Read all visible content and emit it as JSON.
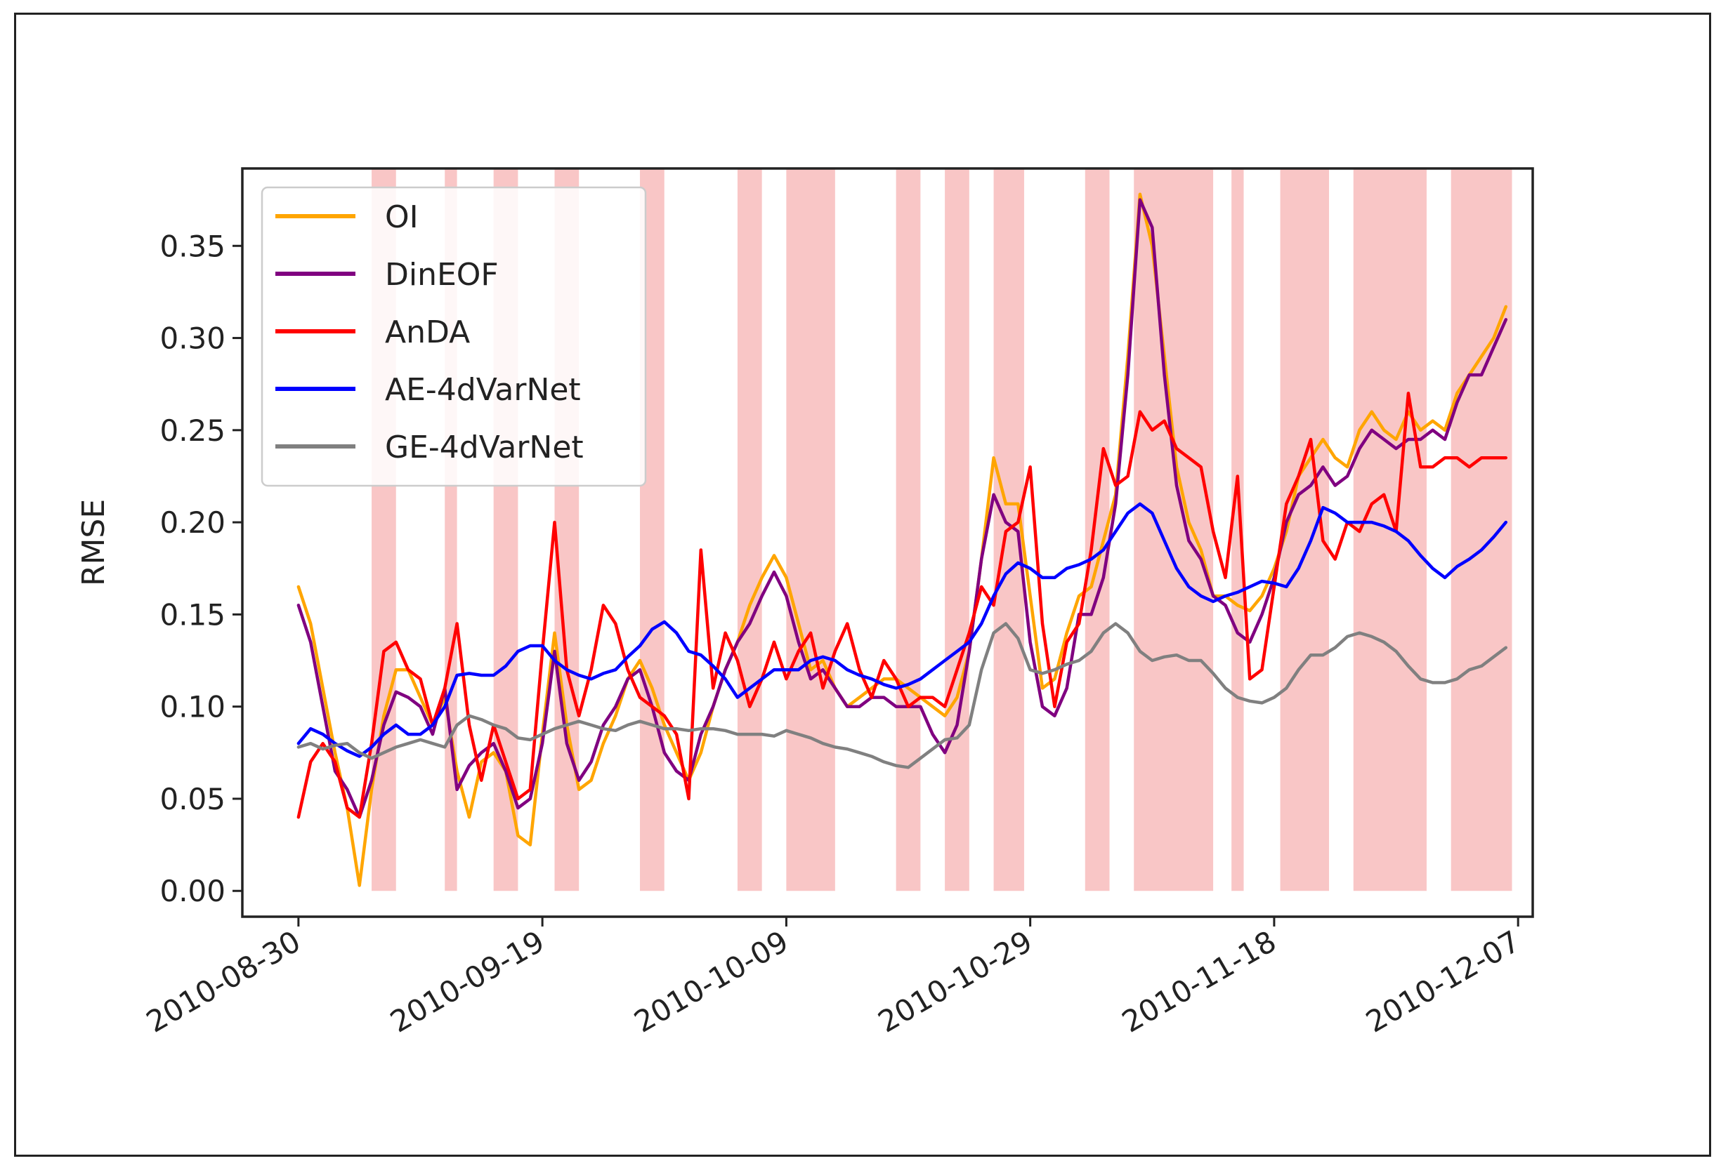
{
  "chart_data": {
    "type": "line",
    "title": "",
    "xlabel": "",
    "ylabel": "RMSE",
    "ylim": [
      -0.014,
      0.392
    ],
    "xlim": [
      -4.6,
      101.2
    ],
    "grid": false,
    "legend": "top-left",
    "x_tick_labels": [
      "2010-08-30",
      "2010-09-19",
      "2010-10-09",
      "2010-10-29",
      "2010-11-18",
      "2010-12-07"
    ],
    "x_tick_days": [
      0,
      20,
      40,
      60,
      80,
      100
    ],
    "y_ticks": [
      0.0,
      0.05,
      0.1,
      0.15,
      0.2,
      0.25,
      0.3,
      0.35
    ],
    "y_tick_labels": [
      "0.00",
      "0.05",
      "0.10",
      "0.15",
      "0.20",
      "0.25",
      "0.30",
      "0.35"
    ],
    "shaded_day_ranges": [
      [
        6,
        8
      ],
      [
        12,
        13
      ],
      [
        16,
        18
      ],
      [
        21,
        23
      ],
      [
        28,
        30
      ],
      [
        36,
        38
      ],
      [
        40,
        44
      ],
      [
        49,
        51
      ],
      [
        53,
        55
      ],
      [
        57,
        59.5
      ],
      [
        64.5,
        66.5
      ],
      [
        68.5,
        75
      ],
      [
        76.5,
        77.5
      ],
      [
        80.5,
        84.5
      ],
      [
        86.5,
        92.5
      ],
      [
        94.5,
        99.5
      ]
    ],
    "shade_color": "#f9c6c6",
    "x": [
      0,
      1,
      2,
      3,
      4,
      5,
      6,
      7,
      8,
      9,
      10,
      11,
      12,
      13,
      14,
      15,
      16,
      17,
      18,
      19,
      20,
      21,
      22,
      23,
      24,
      25,
      26,
      27,
      28,
      29,
      30,
      31,
      32,
      33,
      34,
      35,
      36,
      37,
      38,
      39,
      40,
      41,
      42,
      43,
      44,
      45,
      46,
      47,
      48,
      49,
      50,
      51,
      52,
      53,
      54,
      55,
      56,
      57,
      58,
      59,
      60,
      61,
      62,
      63,
      64,
      65,
      66,
      67,
      68,
      69,
      70,
      71,
      72,
      73,
      74,
      75,
      76,
      77,
      78,
      79,
      80,
      81,
      82,
      83,
      84,
      85,
      86,
      87,
      88,
      89,
      90,
      91,
      92,
      93,
      94,
      95,
      96,
      97,
      98,
      99
    ],
    "series": [
      {
        "name": "OI",
        "color": "#ffa500",
        "values": [
          0.165,
          0.145,
          0.11,
          0.075,
          0.045,
          0.003,
          0.055,
          0.095,
          0.12,
          0.12,
          0.105,
          0.09,
          0.105,
          0.065,
          0.04,
          0.07,
          0.075,
          0.065,
          0.03,
          0.025,
          0.085,
          0.14,
          0.09,
          0.055,
          0.06,
          0.08,
          0.095,
          0.115,
          0.125,
          0.11,
          0.09,
          0.075,
          0.06,
          0.075,
          0.1,
          0.12,
          0.135,
          0.155,
          0.17,
          0.182,
          0.17,
          0.145,
          0.12,
          0.125,
          0.11,
          0.1,
          0.105,
          0.11,
          0.115,
          0.115,
          0.11,
          0.105,
          0.1,
          0.095,
          0.105,
          0.13,
          0.18,
          0.235,
          0.21,
          0.21,
          0.16,
          0.11,
          0.115,
          0.14,
          0.16,
          0.165,
          0.19,
          0.215,
          0.29,
          0.378,
          0.35,
          0.29,
          0.23,
          0.2,
          0.185,
          0.16,
          0.16,
          0.155,
          0.152,
          0.16,
          0.175,
          0.195,
          0.225,
          0.235,
          0.245,
          0.235,
          0.23,
          0.25,
          0.26,
          0.25,
          0.245,
          0.26,
          0.25,
          0.255,
          0.25,
          0.27,
          0.28,
          0.29,
          0.3,
          0.317
        ]
      },
      {
        "name": "DinEOF",
        "color": "#800080",
        "values": [
          0.155,
          0.135,
          0.1,
          0.065,
          0.055,
          0.04,
          0.06,
          0.09,
          0.108,
          0.105,
          0.1,
          0.085,
          0.11,
          0.055,
          0.068,
          0.075,
          0.08,
          0.065,
          0.045,
          0.05,
          0.08,
          0.13,
          0.08,
          0.06,
          0.07,
          0.09,
          0.1,
          0.115,
          0.12,
          0.1,
          0.075,
          0.065,
          0.06,
          0.085,
          0.1,
          0.12,
          0.135,
          0.145,
          0.16,
          0.173,
          0.16,
          0.135,
          0.115,
          0.12,
          0.11,
          0.1,
          0.1,
          0.105,
          0.105,
          0.1,
          0.1,
          0.1,
          0.085,
          0.075,
          0.09,
          0.13,
          0.18,
          0.215,
          0.2,
          0.195,
          0.135,
          0.1,
          0.095,
          0.11,
          0.15,
          0.15,
          0.17,
          0.21,
          0.28,
          0.375,
          0.36,
          0.28,
          0.22,
          0.19,
          0.18,
          0.16,
          0.155,
          0.14,
          0.135,
          0.15,
          0.17,
          0.2,
          0.215,
          0.22,
          0.23,
          0.22,
          0.225,
          0.24,
          0.25,
          0.245,
          0.24,
          0.245,
          0.245,
          0.25,
          0.245,
          0.265,
          0.28,
          0.28,
          0.295,
          0.31
        ]
      },
      {
        "name": "AnDA",
        "color": "#ff0000",
        "values": [
          0.04,
          0.07,
          0.08,
          0.07,
          0.045,
          0.04,
          0.08,
          0.13,
          0.135,
          0.12,
          0.115,
          0.09,
          0.11,
          0.145,
          0.09,
          0.06,
          0.09,
          0.07,
          0.05,
          0.055,
          0.13,
          0.2,
          0.12,
          0.095,
          0.12,
          0.155,
          0.145,
          0.12,
          0.105,
          0.1,
          0.095,
          0.085,
          0.05,
          0.185,
          0.11,
          0.14,
          0.125,
          0.1,
          0.115,
          0.135,
          0.115,
          0.13,
          0.14,
          0.11,
          0.13,
          0.145,
          0.12,
          0.105,
          0.125,
          0.115,
          0.1,
          0.105,
          0.105,
          0.1,
          0.12,
          0.14,
          0.165,
          0.155,
          0.195,
          0.2,
          0.23,
          0.145,
          0.1,
          0.135,
          0.145,
          0.185,
          0.24,
          0.22,
          0.225,
          0.26,
          0.25,
          0.255,
          0.24,
          0.235,
          0.23,
          0.195,
          0.17,
          0.225,
          0.115,
          0.12,
          0.165,
          0.21,
          0.225,
          0.245,
          0.19,
          0.18,
          0.2,
          0.195,
          0.21,
          0.215,
          0.195,
          0.27,
          0.23,
          0.23,
          0.235,
          0.235,
          0.23,
          0.235,
          0.235,
          0.235
        ]
      },
      {
        "name": "AE-4dVarNet",
        "color": "#0000ff",
        "values": [
          0.08,
          0.088,
          0.085,
          0.08,
          0.076,
          0.073,
          0.078,
          0.085,
          0.09,
          0.085,
          0.085,
          0.09,
          0.1,
          0.117,
          0.118,
          0.117,
          0.117,
          0.122,
          0.13,
          0.133,
          0.133,
          0.125,
          0.12,
          0.117,
          0.115,
          0.118,
          0.12,
          0.127,
          0.133,
          0.142,
          0.146,
          0.14,
          0.13,
          0.128,
          0.122,
          0.115,
          0.105,
          0.11,
          0.115,
          0.12,
          0.12,
          0.12,
          0.125,
          0.127,
          0.125,
          0.12,
          0.117,
          0.115,
          0.112,
          0.11,
          0.112,
          0.115,
          0.12,
          0.125,
          0.13,
          0.135,
          0.145,
          0.16,
          0.172,
          0.178,
          0.175,
          0.17,
          0.17,
          0.175,
          0.177,
          0.18,
          0.185,
          0.195,
          0.205,
          0.21,
          0.205,
          0.19,
          0.175,
          0.165,
          0.16,
          0.157,
          0.16,
          0.162,
          0.165,
          0.168,
          0.167,
          0.165,
          0.175,
          0.19,
          0.208,
          0.205,
          0.2,
          0.2,
          0.2,
          0.198,
          0.195,
          0.19,
          0.182,
          0.175,
          0.17,
          0.176,
          0.18,
          0.185,
          0.192,
          0.2
        ]
      },
      {
        "name": "GE-4dVarNet",
        "color": "#808080",
        "values": [
          0.078,
          0.08,
          0.077,
          0.079,
          0.08,
          0.075,
          0.072,
          0.075,
          0.078,
          0.08,
          0.082,
          0.08,
          0.078,
          0.09,
          0.095,
          0.093,
          0.09,
          0.088,
          0.083,
          0.082,
          0.085,
          0.088,
          0.09,
          0.092,
          0.09,
          0.088,
          0.087,
          0.09,
          0.092,
          0.09,
          0.088,
          0.088,
          0.087,
          0.088,
          0.088,
          0.087,
          0.085,
          0.085,
          0.085,
          0.084,
          0.087,
          0.085,
          0.083,
          0.08,
          0.078,
          0.077,
          0.075,
          0.073,
          0.07,
          0.068,
          0.067,
          0.072,
          0.077,
          0.082,
          0.083,
          0.09,
          0.12,
          0.14,
          0.145,
          0.137,
          0.12,
          0.118,
          0.12,
          0.123,
          0.125,
          0.13,
          0.14,
          0.145,
          0.14,
          0.13,
          0.125,
          0.127,
          0.128,
          0.125,
          0.125,
          0.118,
          0.11,
          0.105,
          0.103,
          0.102,
          0.105,
          0.11,
          0.12,
          0.128,
          0.128,
          0.132,
          0.138,
          0.14,
          0.138,
          0.135,
          0.13,
          0.122,
          0.115,
          0.113,
          0.113,
          0.115,
          0.12,
          0.122,
          0.127,
          0.132
        ]
      }
    ]
  }
}
